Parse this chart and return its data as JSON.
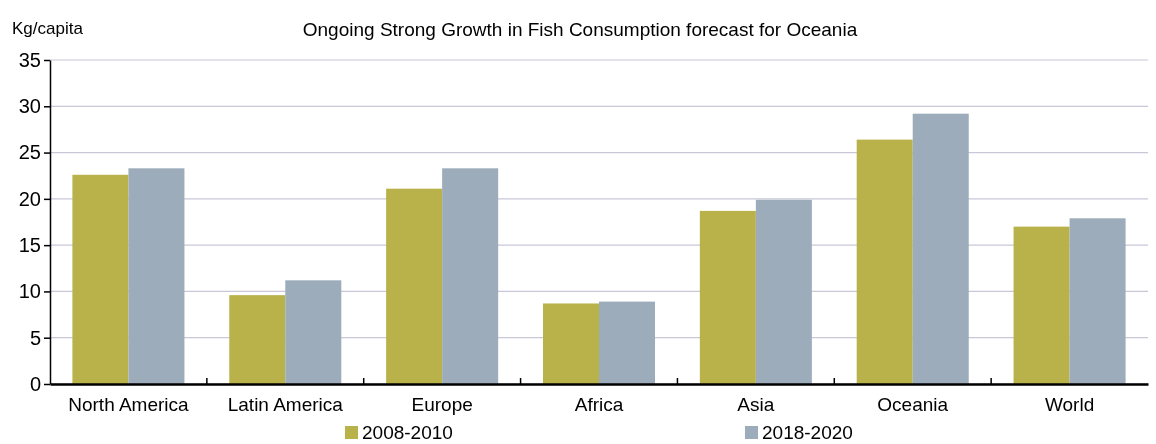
{
  "chart_data": {
    "type": "bar",
    "title": "Ongoing Strong Growth in Fish Consumption forecast for Oceania",
    "ylabel": "Kg/capita",
    "categories": [
      "North America",
      "Latin America",
      "Europe",
      "Africa",
      "Asia",
      "Oceania",
      "World"
    ],
    "series": [
      {
        "name": "2008-2010",
        "color": "#b9b24b",
        "values": [
          22.6,
          9.6,
          21.1,
          8.7,
          18.7,
          26.4,
          17.0
        ]
      },
      {
        "name": "2018-2020",
        "color": "#9dacba",
        "values": [
          23.3,
          11.2,
          23.3,
          8.9,
          19.9,
          29.2,
          17.9
        ]
      }
    ],
    "ylim": [
      0,
      35
    ],
    "yticks": [
      0,
      5,
      10,
      15,
      20,
      25,
      30,
      35
    ],
    "grid": "y",
    "legend": "bottom"
  }
}
